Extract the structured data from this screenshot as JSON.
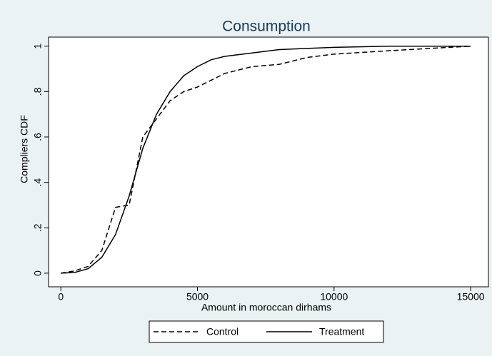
{
  "chart_data": {
    "type": "line",
    "title": "Consumption",
    "x_label": "Amount in moroccan dirhams",
    "y_label": "Compliers CDF",
    "x": [
      0,
      500,
      1000,
      1500,
      2000,
      2500,
      3000,
      3500,
      4000,
      4500,
      5000,
      5500,
      6000,
      7000,
      8000,
      9000,
      10000,
      12000,
      15000
    ],
    "series": [
      {
        "name": "Control",
        "color": "#000000",
        "linestyle": "dashed",
        "values": [
          0,
          0.01,
          0.03,
          0.1,
          0.29,
          0.3,
          0.6,
          0.68,
          0.76,
          0.8,
          0.82,
          0.85,
          0.88,
          0.91,
          0.92,
          0.95,
          0.965,
          0.98,
          1
        ]
      },
      {
        "name": "Treatment",
        "color": "#000000",
        "linestyle": "solid",
        "values": [
          0,
          0.003,
          0.02,
          0.07,
          0.17,
          0.34,
          0.55,
          0.7,
          0.8,
          0.87,
          0.91,
          0.94,
          0.955,
          0.97,
          0.985,
          0.99,
          0.995,
          1,
          1
        ]
      }
    ],
    "xlim": [
      -450,
      15650
    ],
    "ylim": [
      -0.06,
      1.04
    ],
    "xticks": [
      0,
      5000,
      10000,
      15000
    ],
    "yticks": [
      0,
      {
        "value": 0.2,
        "label": ".2"
      },
      {
        "value": 0.4,
        "label": ".4"
      },
      {
        "value": 0.6,
        "label": ".6"
      },
      {
        "value": 0.8,
        "label": ".8"
      },
      1
    ],
    "grid": false,
    "legend": "bottom"
  }
}
